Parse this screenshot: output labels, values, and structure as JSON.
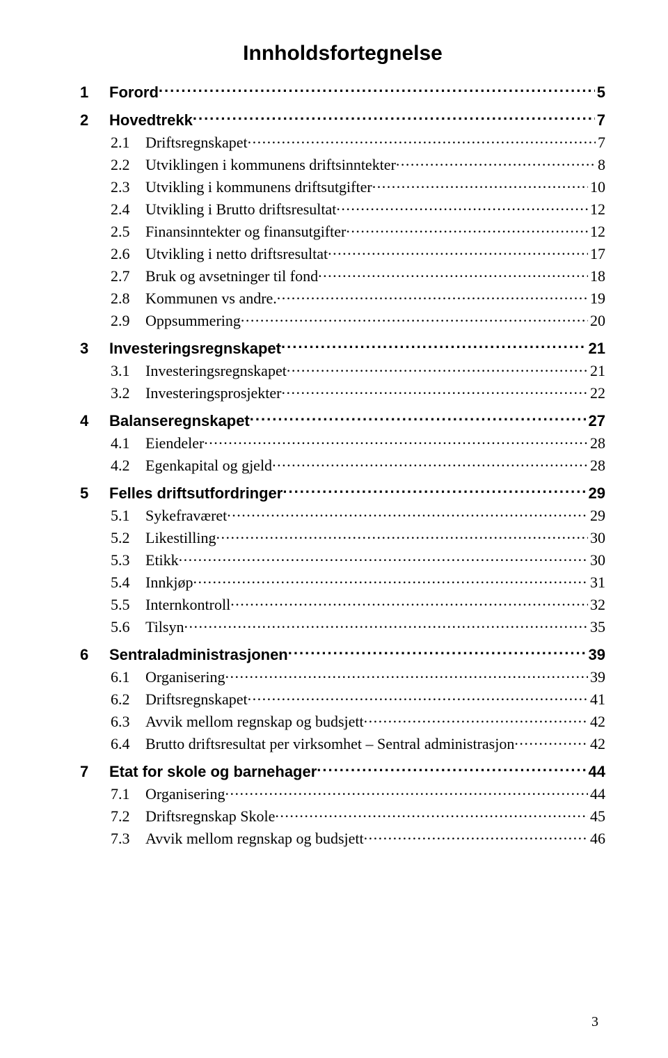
{
  "title": "Innholdsfortegnelse",
  "pageNumber": "3",
  "colors": {
    "background": "#ffffff",
    "text": "#000000"
  },
  "entries": [
    {
      "level": 1,
      "num": "1",
      "label": "Forord",
      "page": "5"
    },
    {
      "level": 1,
      "num": "2",
      "label": "Hovedtrekk",
      "page": "7"
    },
    {
      "level": 2,
      "num": "2.1",
      "label": "Driftsregnskapet",
      "page": "7"
    },
    {
      "level": 2,
      "num": "2.2",
      "label": "Utviklingen i kommunens driftsinntekter",
      "page": "8"
    },
    {
      "level": 2,
      "num": "2.3",
      "label": "Utvikling i kommunens driftsutgifter",
      "page": "10"
    },
    {
      "level": 2,
      "num": "2.4",
      "label": "Utvikling i Brutto driftsresultat",
      "page": "12"
    },
    {
      "level": 2,
      "num": "2.5",
      "label": "Finansinntekter og finansutgifter",
      "page": "12"
    },
    {
      "level": 2,
      "num": "2.6",
      "label": "Utvikling i netto driftsresultat",
      "page": "17"
    },
    {
      "level": 2,
      "num": "2.7",
      "label": "Bruk og avsetninger til fond",
      "page": "18"
    },
    {
      "level": 2,
      "num": "2.8",
      "label": "Kommunen vs andre. ",
      "page": "19"
    },
    {
      "level": 2,
      "num": "2.9",
      "label": "Oppsummering",
      "page": "20"
    },
    {
      "level": 1,
      "num": "3",
      "label": "Investeringsregnskapet",
      "page": "21"
    },
    {
      "level": 2,
      "num": "3.1",
      "label": "Investeringsregnskapet",
      "page": "21"
    },
    {
      "level": 2,
      "num": "3.2",
      "label": "Investeringsprosjekter",
      "page": "22"
    },
    {
      "level": 1,
      "num": "4",
      "label": "Balanseregnskapet",
      "page": "27"
    },
    {
      "level": 2,
      "num": "4.1",
      "label": "Eiendeler",
      "page": "28"
    },
    {
      "level": 2,
      "num": "4.2",
      "label": "Egenkapital og gjeld",
      "page": "28"
    },
    {
      "level": 1,
      "num": "5",
      "label": "Felles driftsutfordringer",
      "page": "29"
    },
    {
      "level": 2,
      "num": "5.1",
      "label": "Sykefraværet",
      "page": "29"
    },
    {
      "level": 2,
      "num": "5.2",
      "label": "Likestilling",
      "page": "30"
    },
    {
      "level": 2,
      "num": "5.3",
      "label": "Etikk",
      "page": "30"
    },
    {
      "level": 2,
      "num": "5.4",
      "label": "Innkjøp",
      "page": "31"
    },
    {
      "level": 2,
      "num": "5.5",
      "label": "Internkontroll",
      "page": "32"
    },
    {
      "level": 2,
      "num": "5.6",
      "label": "Tilsyn",
      "page": "35"
    },
    {
      "level": 1,
      "num": "6",
      "label": "Sentraladministrasjonen",
      "page": "39"
    },
    {
      "level": 2,
      "num": "6.1",
      "label": "Organisering",
      "page": "39"
    },
    {
      "level": 2,
      "num": "6.2",
      "label": "Driftsregnskapet",
      "page": "41"
    },
    {
      "level": 2,
      "num": "6.3",
      "label": "Avvik mellom regnskap og budsjett",
      "page": "42"
    },
    {
      "level": 2,
      "num": "6.4",
      "label": "Brutto driftsresultat per virksomhet – Sentral administrasjon",
      "page": "42"
    },
    {
      "level": 1,
      "num": "7",
      "label": "Etat for skole og barnehager",
      "page": "44"
    },
    {
      "level": 2,
      "num": "7.1",
      "label": "Organisering",
      "page": "44"
    },
    {
      "level": 2,
      "num": "7.2",
      "label": "Driftsregnskap Skole",
      "page": "45"
    },
    {
      "level": 2,
      "num": "7.3",
      "label": "Avvik mellom regnskap og budsjett",
      "page": "46"
    }
  ]
}
